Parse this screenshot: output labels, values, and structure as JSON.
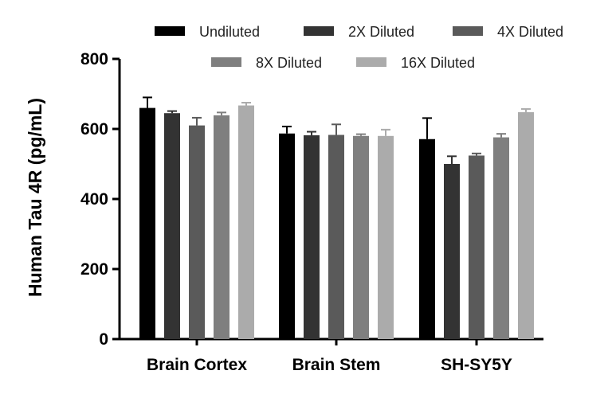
{
  "chart_data": {
    "type": "bar",
    "title": "",
    "xlabel": "",
    "ylabel": "Human Tau 4R (pg/mL)",
    "ylim": [
      0,
      800
    ],
    "yticks": [
      "0",
      "200",
      "400",
      "600",
      "800"
    ],
    "categories": [
      "Brain Cortex",
      "Brain Stem",
      "SH-SY5Y"
    ],
    "series": [
      {
        "name": "Undiluted",
        "color": "#000000",
        "values": [
          660,
          587,
          571
        ],
        "errors": [
          30,
          20,
          60
        ]
      },
      {
        "name": "2X Diluted",
        "color": "#333333",
        "values": [
          645,
          582,
          500
        ],
        "errors": [
          6,
          10,
          22
        ]
      },
      {
        "name": "4X Diluted",
        "color": "#5a5a5a",
        "values": [
          610,
          583,
          524
        ],
        "errors": [
          22,
          30,
          6
        ]
      },
      {
        "name": "8X Diluted",
        "color": "#7f7f7f",
        "values": [
          639,
          580,
          576
        ],
        "errors": [
          8,
          5,
          10
        ]
      },
      {
        "name": "16X Diluted",
        "color": "#ababab",
        "values": [
          667,
          580,
          648
        ],
        "errors": [
          8,
          18,
          9
        ]
      }
    ],
    "legend_position": "top"
  }
}
